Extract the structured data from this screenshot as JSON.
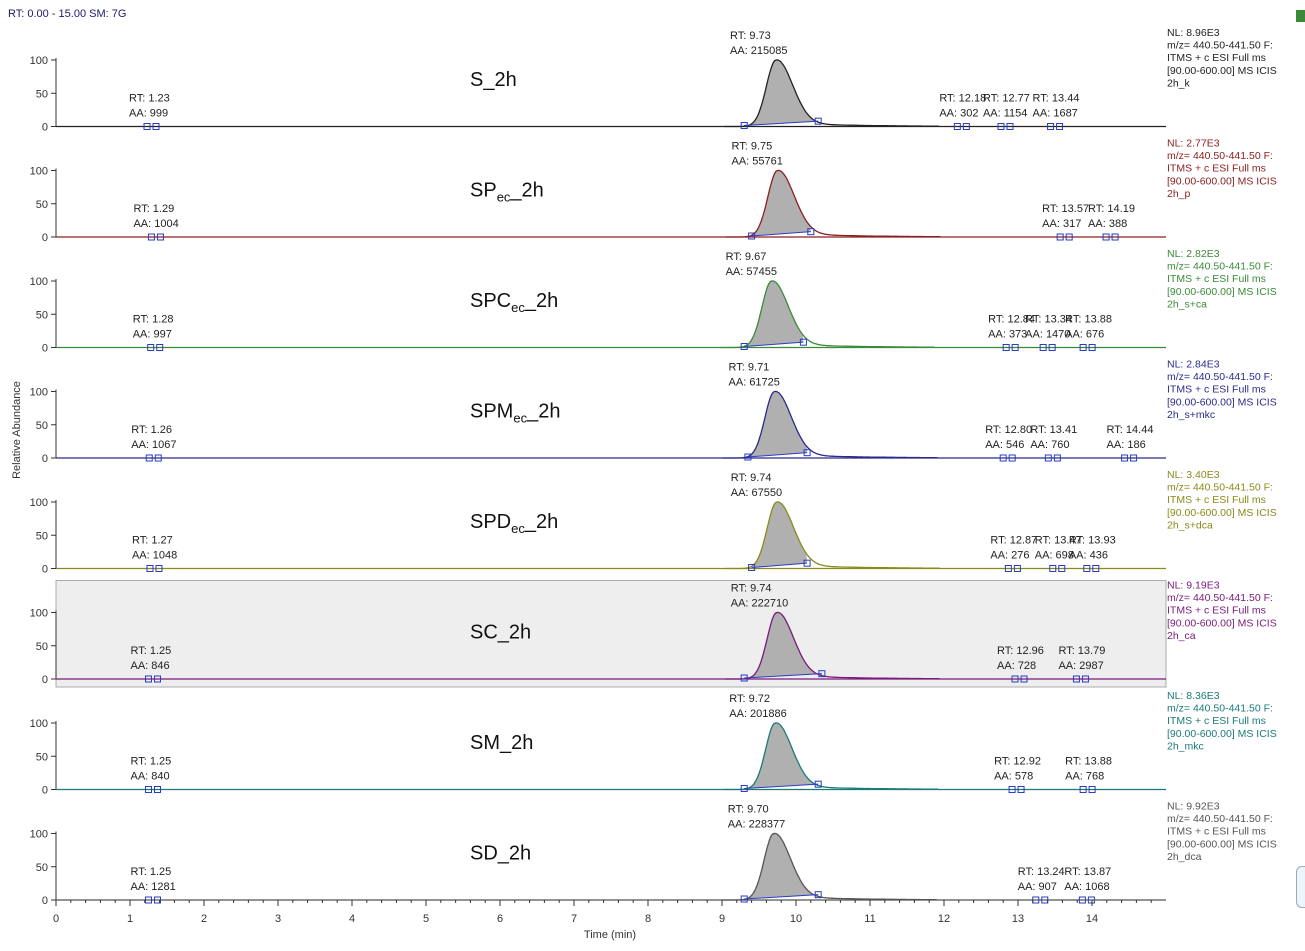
{
  "header": {
    "range_label": "RT: 0.00 - 15.00   SM: 7G"
  },
  "chart_data": {
    "type": "line",
    "stacked_panels": true,
    "xlabel": "Time (min)",
    "ylabel": "Relative Abundance",
    "xlim": [
      0,
      15
    ],
    "ylim": [
      0,
      100
    ],
    "x_ticks": [
      0,
      1,
      2,
      3,
      4,
      5,
      6,
      7,
      8,
      9,
      10,
      11,
      12,
      13,
      14
    ],
    "y_ticks": [
      0,
      50,
      100
    ],
    "panels": [
      {
        "label_main": "S",
        "label_sub": "",
        "label_suffix": "_2h",
        "color": "#222222",
        "shaded": false,
        "peak_rt": 9.73,
        "peak_start": 9.3,
        "peak_end": 10.3,
        "peaks": [
          {
            "rt": "1.23",
            "aa": "999",
            "x": 1.23
          },
          {
            "rt": "9.73",
            "aa": "215085",
            "x": 9.73,
            "main": true
          },
          {
            "rt": "12.18",
            "aa": "302",
            "x": 12.18
          },
          {
            "rt": "12.77",
            "aa": "1154",
            "x": 12.77
          },
          {
            "rt": "13.44",
            "aa": "1687",
            "x": 13.44
          }
        ],
        "nl": "NL: 8.96E3",
        "info": [
          "m/z= 440.50-441.50 F:",
          "ITMS + c ESI Full ms",
          "[90.00-600.00]  MS  ICIS",
          "2h_k"
        ]
      },
      {
        "label_main": "SP",
        "label_sub": "ec",
        "label_suffix": "_2h",
        "color": "#8b2020",
        "shaded": false,
        "peak_rt": 9.75,
        "peak_start": 9.4,
        "peak_end": 10.2,
        "peaks": [
          {
            "rt": "1.29",
            "aa": "1004",
            "x": 1.29
          },
          {
            "rt": "9.75",
            "aa": "55761",
            "x": 9.75,
            "main": true
          },
          {
            "rt": "13.57",
            "aa": "317",
            "x": 13.57
          },
          {
            "rt": "14.19",
            "aa": "388",
            "x": 14.19
          }
        ],
        "nl": "NL: 2.77E3",
        "info": [
          "m/z= 440.50-441.50 F:",
          "ITMS + c ESI Full ms",
          "[90.00-600.00]  MS  ICIS",
          "2h_p"
        ]
      },
      {
        "label_main": "SPC",
        "label_sub": "ec",
        "label_suffix": "_2h",
        "color": "#3a8a3a",
        "shaded": false,
        "peak_rt": 9.67,
        "peak_start": 9.3,
        "peak_end": 10.1,
        "peaks": [
          {
            "rt": "1.28",
            "aa": "997",
            "x": 1.28
          },
          {
            "rt": "9.67",
            "aa": "57455",
            "x": 9.67,
            "main": true
          },
          {
            "rt": "12.84",
            "aa": "373",
            "x": 12.84
          },
          {
            "rt": "13.34",
            "aa": "1470",
            "x": 13.34
          },
          {
            "rt": "13.88",
            "aa": "676",
            "x": 13.88
          }
        ],
        "nl": "NL: 2.82E3",
        "info": [
          "m/z= 440.50-441.50 F:",
          "ITMS + c ESI Full ms",
          "[90.00-600.00]  MS  ICIS",
          "2h_s+ca"
        ]
      },
      {
        "label_main": "SPM",
        "label_sub": "ec",
        "label_suffix": "_2h",
        "color": "#2a2a8a",
        "shaded": false,
        "peak_rt": 9.71,
        "peak_start": 9.35,
        "peak_end": 10.15,
        "peaks": [
          {
            "rt": "1.26",
            "aa": "1067",
            "x": 1.26
          },
          {
            "rt": "9.71",
            "aa": "61725",
            "x": 9.71,
            "main": true
          },
          {
            "rt": "12.80",
            "aa": "546",
            "x": 12.8
          },
          {
            "rt": "13.41",
            "aa": "760",
            "x": 13.41
          },
          {
            "rt": "14.44",
            "aa": "186",
            "x": 14.44
          }
        ],
        "nl": "NL: 2.84E3",
        "info": [
          "m/z= 440.50-441.50 F:",
          "ITMS + c ESI Full ms",
          "[90.00-600.00]  MS  ICIS",
          "2h_s+mkc"
        ]
      },
      {
        "label_main": "SPD",
        "label_sub": "ec",
        "label_suffix": "_2h",
        "color": "#8a8a1a",
        "shaded": false,
        "peak_rt": 9.74,
        "peak_start": 9.4,
        "peak_end": 10.15,
        "peaks": [
          {
            "rt": "1.27",
            "aa": "1048",
            "x": 1.27
          },
          {
            "rt": "9.74",
            "aa": "67550",
            "x": 9.74,
            "main": true
          },
          {
            "rt": "12.87",
            "aa": "276",
            "x": 12.87
          },
          {
            "rt": "13.47",
            "aa": "698",
            "x": 13.47
          },
          {
            "rt": "13.93",
            "aa": "436",
            "x": 13.93
          }
        ],
        "nl": "NL: 3.40E3",
        "info": [
          "m/z= 440.50-441.50 F:",
          "ITMS + c ESI Full ms",
          "[90.00-600.00]  MS  ICIS",
          "2h_s+dca"
        ]
      },
      {
        "label_main": "SC",
        "label_sub": "",
        "label_suffix": "_2h",
        "color": "#7a1a7a",
        "shaded": true,
        "peak_rt": 9.74,
        "peak_start": 9.3,
        "peak_end": 10.35,
        "peaks": [
          {
            "rt": "1.25",
            "aa": "846",
            "x": 1.25
          },
          {
            "rt": "9.74",
            "aa": "222710",
            "x": 9.74,
            "main": true
          },
          {
            "rt": "12.96",
            "aa": "728",
            "x": 12.96
          },
          {
            "rt": "13.79",
            "aa": "2987",
            "x": 13.79
          }
        ],
        "nl": "NL: 9.19E3",
        "info": [
          "m/z= 440.50-441.50 F:",
          "ITMS + c ESI Full ms",
          "[90.00-600.00]  MS  ICIS",
          "2h_ca"
        ]
      },
      {
        "label_main": "SM",
        "label_sub": "",
        "label_suffix": "_2h",
        "color": "#1a7a7a",
        "shaded": false,
        "peak_rt": 9.72,
        "peak_start": 9.3,
        "peak_end": 10.3,
        "peaks": [
          {
            "rt": "1.25",
            "aa": "840",
            "x": 1.25
          },
          {
            "rt": "9.72",
            "aa": "201886",
            "x": 9.72,
            "main": true
          },
          {
            "rt": "12.92",
            "aa": "578",
            "x": 12.92
          },
          {
            "rt": "13.88",
            "aa": "768",
            "x": 13.88
          }
        ],
        "nl": "NL: 8.36E3",
        "info": [
          "m/z= 440.50-441.50 F:",
          "ITMS + c ESI Full ms",
          "[90.00-600.00]  MS  ICIS",
          "2h_mkc"
        ]
      },
      {
        "label_main": "SD",
        "label_sub": "",
        "label_suffix": "_2h",
        "color": "#555555",
        "shaded": false,
        "peak_rt": 9.7,
        "peak_start": 9.3,
        "peak_end": 10.3,
        "peaks": [
          {
            "rt": "1.25",
            "aa": "1281",
            "x": 1.25
          },
          {
            "rt": "9.70",
            "aa": "228377",
            "x": 9.7,
            "main": true
          },
          {
            "rt": "13.24",
            "aa": "907",
            "x": 13.24
          },
          {
            "rt": "13.87",
            "aa": "1068",
            "x": 13.87
          }
        ],
        "nl": "NL: 9.92E3",
        "info": [
          "m/z= 440.50-441.50 F:",
          "ITMS + c ESI Full ms",
          "[90.00-600.00]  MS  ICIS",
          "2h_dca"
        ]
      }
    ]
  },
  "annotation_prefixes": {
    "rt": "RT: ",
    "aa": "AA: "
  }
}
